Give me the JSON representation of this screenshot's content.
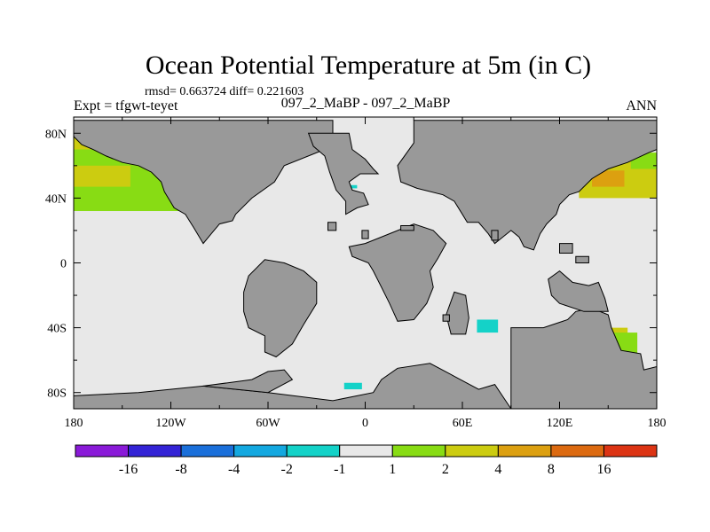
{
  "chart_data": {
    "type": "heatmap",
    "title": "Ocean Potential Temperature at 5m (in C)",
    "stats": "rmsd= 0.663724 diff= 0.221603",
    "left_label": "Expt = tfgwt-teyet",
    "center_label": "097_2_MaBP - 097_2_MaBP",
    "right_label": "ANN",
    "x_ticks": [
      "180",
      "120W",
      "60W",
      "0",
      "60E",
      "120E",
      "180"
    ],
    "x_tick_values": [
      -180,
      -120,
      -60,
      0,
      60,
      120,
      180
    ],
    "y_ticks": [
      "80N",
      "40N",
      "0",
      "40S",
      "80S"
    ],
    "y_tick_values": [
      80,
      40,
      0,
      -40,
      -80
    ],
    "xlim": [
      -180,
      180
    ],
    "ylim": [
      -90,
      90
    ],
    "land_color": "#999999",
    "ocean_background_color": "#e8e8e8",
    "colorbar": {
      "colors": [
        "#8a1ad8",
        "#3424d6",
        "#1a6fda",
        "#14a8e0",
        "#14d2c8",
        "#e8e8e8",
        "#88dc14",
        "#cccc10",
        "#dca010",
        "#dc6a10",
        "#dc3414"
      ],
      "labels": [
        "-16",
        "-8",
        "-4",
        "-2",
        "-1",
        "1",
        "2",
        "4",
        "8",
        "16"
      ]
    },
    "anomaly_regions": [
      {
        "name": "north-pacific-west",
        "level": "2 to 4",
        "color": "#cccc10",
        "lon": [
          -180,
          -160
        ],
        "lat": [
          68,
          80
        ]
      },
      {
        "name": "north-pacific-east",
        "level": "1 to 2",
        "color": "#88dc14",
        "lon": [
          -180,
          -84
        ],
        "lat": [
          32,
          70
        ]
      },
      {
        "name": "north-pacific-core",
        "level": "2 to 4",
        "color": "#cccc10",
        "lon": [
          -180,
          -145
        ],
        "lat": [
          47,
          60
        ]
      },
      {
        "name": "west-pacific-broad",
        "level": "2 to 4",
        "color": "#cccc10",
        "lon": [
          132,
          180
        ],
        "lat": [
          40,
          68
        ]
      },
      {
        "name": "west-pacific-core",
        "level": "4 to 8",
        "color": "#dca010",
        "lon": [
          140,
          160
        ],
        "lat": [
          47,
          57
        ]
      },
      {
        "name": "west-pacific-edge",
        "level": "1 to 2",
        "color": "#88dc14",
        "lon": [
          164,
          180
        ],
        "lat": [
          58,
          68
        ]
      },
      {
        "name": "south-australia",
        "level": "2 to 4",
        "color": "#cccc10",
        "lon": [
          148,
          162
        ],
        "lat": [
          -46,
          -40
        ]
      },
      {
        "name": "south-australia-edge",
        "level": "1 to 2",
        "color": "#88dc14",
        "lon": [
          145,
          168
        ],
        "lat": [
          -58,
          -43
        ]
      },
      {
        "name": "south-indian",
        "level": "-2 to -1",
        "color": "#14d2c8",
        "lon": [
          69,
          82
        ],
        "lat": [
          -43,
          -35
        ]
      },
      {
        "name": "southern-atlantic",
        "level": "-2 to -1",
        "color": "#14d2c8",
        "lon": [
          -13,
          -2
        ],
        "lat": [
          -78,
          -74
        ]
      },
      {
        "name": "north-atlantic-speck",
        "level": "-2 to -1",
        "color": "#14d2c8",
        "lon": [
          -9,
          -5
        ],
        "lat": [
          46,
          48
        ]
      }
    ],
    "land_regions": [
      {
        "name": "north-america",
        "points": [
          [
            -180,
            78
          ],
          [
            -180,
            88
          ],
          [
            -20,
            88
          ],
          [
            -20,
            72
          ],
          [
            -50,
            60
          ],
          [
            -56,
            50
          ],
          [
            -70,
            40
          ],
          [
            -80,
            30
          ],
          [
            -82,
            26
          ],
          [
            -90,
            24
          ],
          [
            -95,
            18
          ],
          [
            -100,
            12
          ],
          [
            -106,
            22
          ],
          [
            -111,
            30
          ],
          [
            -118,
            34
          ],
          [
            -124,
            44
          ],
          [
            -126,
            50
          ],
          [
            -132,
            56
          ],
          [
            -140,
            60
          ],
          [
            -150,
            62
          ],
          [
            -160,
            66
          ],
          [
            -168,
            70
          ],
          [
            -175,
            73
          ]
        ]
      },
      {
        "name": "europe",
        "points": [
          [
            -35,
            80
          ],
          [
            -10,
            80
          ],
          [
            -8,
            70
          ],
          [
            0,
            64
          ],
          [
            5,
            58
          ],
          [
            8,
            55
          ],
          [
            -3,
            55
          ],
          [
            -10,
            50
          ],
          [
            -8,
            45
          ],
          [
            -1,
            43
          ],
          [
            2,
            36
          ],
          [
            -5,
            34
          ],
          [
            -12,
            30
          ],
          [
            -12,
            38
          ],
          [
            -18,
            45
          ],
          [
            -22,
            56
          ],
          [
            -25,
            66
          ],
          [
            -32,
            72
          ]
        ]
      },
      {
        "name": "asia",
        "points": [
          [
            30,
            80
          ],
          [
            30,
            74
          ],
          [
            20,
            60
          ],
          [
            22,
            50
          ],
          [
            32,
            46
          ],
          [
            48,
            42
          ],
          [
            55,
            38
          ],
          [
            60,
            30
          ],
          [
            63,
            25
          ],
          [
            70,
            25
          ],
          [
            76,
            18
          ],
          [
            80,
            12
          ],
          [
            90,
            20
          ],
          [
            95,
            16
          ],
          [
            98,
            10
          ],
          [
            104,
            8
          ],
          [
            108,
            18
          ],
          [
            112,
            24
          ],
          [
            118,
            30
          ],
          [
            120,
            36
          ],
          [
            126,
            42
          ],
          [
            132,
            44
          ],
          [
            140,
            52
          ],
          [
            150,
            58
          ],
          [
            162,
            62
          ],
          [
            175,
            68
          ],
          [
            180,
            70
          ],
          [
            180,
            88
          ],
          [
            30,
            88
          ]
        ]
      },
      {
        "name": "africa",
        "points": [
          [
            -10,
            10
          ],
          [
            0,
            12
          ],
          [
            15,
            18
          ],
          [
            30,
            24
          ],
          [
            42,
            20
          ],
          [
            50,
            12
          ],
          [
            45,
            3
          ],
          [
            40,
            -5
          ],
          [
            42,
            -15
          ],
          [
            38,
            -25
          ],
          [
            30,
            -35
          ],
          [
            20,
            -36
          ],
          [
            15,
            -25
          ],
          [
            10,
            -15
          ],
          [
            5,
            -5
          ],
          [
            2,
            0
          ],
          [
            -8,
            4
          ]
        ]
      },
      {
        "name": "south-america",
        "points": [
          [
            -50,
            0
          ],
          [
            -38,
            -5
          ],
          [
            -30,
            -12
          ],
          [
            -30,
            -25
          ],
          [
            -38,
            -38
          ],
          [
            -45,
            -50
          ],
          [
            -55,
            -58
          ],
          [
            -62,
            -55
          ],
          [
            -62,
            -45
          ],
          [
            -72,
            -40
          ],
          [
            -75,
            -30
          ],
          [
            -75,
            -18
          ],
          [
            -72,
            -8
          ],
          [
            -62,
            2
          ]
        ]
      },
      {
        "name": "india",
        "points": [
          [
            55,
            -18
          ],
          [
            62,
            -20
          ],
          [
            64,
            -34
          ],
          [
            62,
            -44
          ],
          [
            53,
            -44
          ],
          [
            50,
            -32
          ]
        ]
      },
      {
        "name": "australia",
        "points": [
          [
            90,
            -40
          ],
          [
            110,
            -40
          ],
          [
            125,
            -35
          ],
          [
            130,
            -30
          ],
          [
            140,
            -28
          ],
          [
            150,
            -32
          ],
          [
            152,
            -40
          ],
          [
            158,
            -54
          ],
          [
            170,
            -56
          ],
          [
            172,
            -66
          ],
          [
            180,
            -64
          ],
          [
            180,
            -90
          ],
          [
            90,
            -90
          ],
          [
            80,
            -75
          ],
          [
            70,
            -78
          ],
          [
            55,
            -70
          ],
          [
            40,
            -62
          ],
          [
            20,
            -65
          ],
          [
            10,
            -72
          ],
          [
            5,
            -80
          ],
          [
            -20,
            -85
          ],
          [
            -60,
            -80
          ],
          [
            -100,
            -76
          ],
          [
            -140,
            -80
          ],
          [
            -180,
            -82
          ],
          [
            -180,
            -90
          ],
          [
            90,
            -90
          ]
        ]
      },
      {
        "name": "antarctic-margin",
        "points": [
          [
            -60,
            -80
          ],
          [
            -45,
            -72
          ],
          [
            -50,
            -66
          ],
          [
            -60,
            -67
          ],
          [
            -70,
            -72
          ],
          [
            -100,
            -76
          ]
        ]
      },
      {
        "name": "indonesia",
        "points": [
          [
            120,
            -5
          ],
          [
            128,
            -12
          ],
          [
            138,
            -14
          ],
          [
            144,
            -12
          ],
          [
            148,
            -22
          ],
          [
            150,
            -30
          ],
          [
            135,
            -30
          ],
          [
            120,
            -25
          ],
          [
            115,
            -20
          ],
          [
            113,
            -10
          ]
        ]
      },
      {
        "name": "small-island-1",
        "points": [
          [
            -23,
            25
          ],
          [
            -18,
            25
          ],
          [
            -18,
            20
          ],
          [
            -23,
            20
          ]
        ]
      },
      {
        "name": "small-island-2",
        "points": [
          [
            -2,
            20
          ],
          [
            2,
            20
          ],
          [
            2,
            15
          ],
          [
            -2,
            15
          ]
        ]
      },
      {
        "name": "small-island-3",
        "points": [
          [
            22,
            23
          ],
          [
            30,
            23
          ],
          [
            30,
            20
          ],
          [
            22,
            20
          ]
        ]
      },
      {
        "name": "small-island-4",
        "points": [
          [
            78,
            20
          ],
          [
            82,
            20
          ],
          [
            82,
            14
          ],
          [
            78,
            14
          ]
        ]
      },
      {
        "name": "small-island-5",
        "points": [
          [
            120,
            12
          ],
          [
            128,
            12
          ],
          [
            128,
            6
          ],
          [
            120,
            6
          ]
        ]
      },
      {
        "name": "small-island-6",
        "points": [
          [
            130,
            4
          ],
          [
            138,
            4
          ],
          [
            138,
            0
          ],
          [
            130,
            0
          ]
        ]
      },
      {
        "name": "small-island-7",
        "points": [
          [
            48,
            -32
          ],
          [
            52,
            -32
          ],
          [
            52,
            -36
          ],
          [
            48,
            -36
          ]
        ]
      }
    ]
  }
}
